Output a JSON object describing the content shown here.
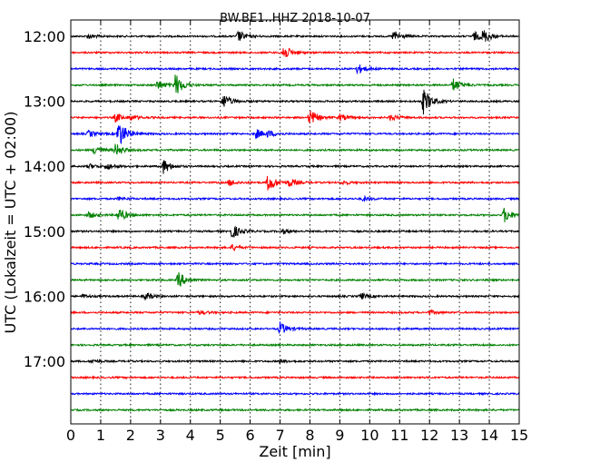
{
  "chart_data": {
    "type": "line",
    "title": "BW.BE1..HHZ 2018-10-07",
    "xlabel": "Zeit  [min]",
    "ylabel": "UTC (Lokalzeit = UTC + 02:00)",
    "xlim": [
      0,
      15
    ],
    "x_ticks": [
      "0",
      "1",
      "2",
      "3",
      "4",
      "5",
      "6",
      "7",
      "8",
      "9",
      "10",
      "11",
      "12",
      "13",
      "14",
      "15"
    ],
    "y_tick_labels": [
      "12:00",
      "13:00",
      "14:00",
      "15:00",
      "16:00",
      "17:00"
    ],
    "y_tick_rows": [
      0,
      4,
      8,
      12,
      16,
      20
    ],
    "grid": "vertical-dotted",
    "row_colors": [
      "#000000",
      "#ff0000",
      "#0000ff",
      "#008000"
    ],
    "rows": [
      {
        "start": "12:00",
        "events": [
          {
            "t": 0.6,
            "a": 0.25
          },
          {
            "t": 5.6,
            "a": 0.7
          },
          {
            "t": 10.8,
            "a": 0.7
          },
          {
            "t": 13.5,
            "a": 0.55
          },
          {
            "t": 13.8,
            "a": 0.75
          }
        ]
      },
      {
        "start": "12:15",
        "events": [
          {
            "t": 7.1,
            "a": 1.0
          }
        ]
      },
      {
        "start": "12:30",
        "events": [
          {
            "t": 9.6,
            "a": 0.6
          }
        ]
      },
      {
        "start": "12:45",
        "events": [
          {
            "t": 2.9,
            "a": 0.6
          },
          {
            "t": 3.5,
            "a": 1.4
          },
          {
            "t": 12.8,
            "a": 0.8
          }
        ]
      },
      {
        "start": "13:00",
        "events": [
          {
            "t": 5.1,
            "a": 0.9
          },
          {
            "t": 11.8,
            "a": 1.6
          }
        ]
      },
      {
        "start": "13:15",
        "events": [
          {
            "t": 1.5,
            "a": 0.55
          },
          {
            "t": 2.0,
            "a": 0.3
          },
          {
            "t": 8.0,
            "a": 1.0
          },
          {
            "t": 9.0,
            "a": 0.4
          },
          {
            "t": 10.7,
            "a": 0.4
          }
        ]
      },
      {
        "start": "13:30",
        "events": [
          {
            "t": 0.6,
            "a": 0.4
          },
          {
            "t": 1.6,
            "a": 1.8
          },
          {
            "t": 6.2,
            "a": 0.6
          },
          {
            "t": 6.6,
            "a": 0.35
          }
        ]
      },
      {
        "start": "13:45",
        "events": [
          {
            "t": 0.8,
            "a": 0.6
          },
          {
            "t": 1.5,
            "a": 0.8
          }
        ]
      },
      {
        "start": "14:00",
        "events": [
          {
            "t": 0.6,
            "a": 0.3
          },
          {
            "t": 1.2,
            "a": 0.4
          },
          {
            "t": 3.1,
            "a": 0.9
          }
        ]
      },
      {
        "start": "14:15",
        "events": [
          {
            "t": 5.3,
            "a": 0.4
          },
          {
            "t": 6.6,
            "a": 1.2
          },
          {
            "t": 7.3,
            "a": 0.5
          },
          {
            "t": 9.1,
            "a": 0.25
          }
        ]
      },
      {
        "start": "14:30",
        "events": [
          {
            "t": 1.6,
            "a": 0.2
          },
          {
            "t": 9.8,
            "a": 0.3
          }
        ]
      },
      {
        "start": "14:45",
        "events": [
          {
            "t": 0.6,
            "a": 0.4
          },
          {
            "t": 1.6,
            "a": 0.9
          },
          {
            "t": 14.5,
            "a": 0.95
          }
        ]
      },
      {
        "start": "15:00",
        "events": [
          {
            "t": 5.4,
            "a": 0.9
          },
          {
            "t": 7.1,
            "a": 0.3
          }
        ]
      },
      {
        "start": "15:15",
        "events": [
          {
            "t": 5.4,
            "a": 0.35
          }
        ]
      },
      {
        "start": "15:30",
        "events": []
      },
      {
        "start": "15:45",
        "events": [
          {
            "t": 3.6,
            "a": 1.0
          }
        ]
      },
      {
        "start": "16:00",
        "events": [
          {
            "t": 0.4,
            "a": 0.2
          },
          {
            "t": 2.5,
            "a": 0.45
          },
          {
            "t": 9.7,
            "a": 0.4
          }
        ]
      },
      {
        "start": "16:15",
        "events": [
          {
            "t": 4.3,
            "a": 0.25
          },
          {
            "t": 12.0,
            "a": 0.25
          }
        ]
      },
      {
        "start": "16:30",
        "events": [
          {
            "t": 7.0,
            "a": 0.8
          }
        ]
      },
      {
        "start": "16:45",
        "events": []
      },
      {
        "start": "17:00",
        "events": [
          {
            "t": 0.7,
            "a": 0.2
          },
          {
            "t": 7.0,
            "a": 0.2
          }
        ]
      },
      {
        "start": "17:15",
        "events": []
      },
      {
        "start": "17:30",
        "events": []
      },
      {
        "start": "17:45",
        "events": []
      }
    ]
  }
}
